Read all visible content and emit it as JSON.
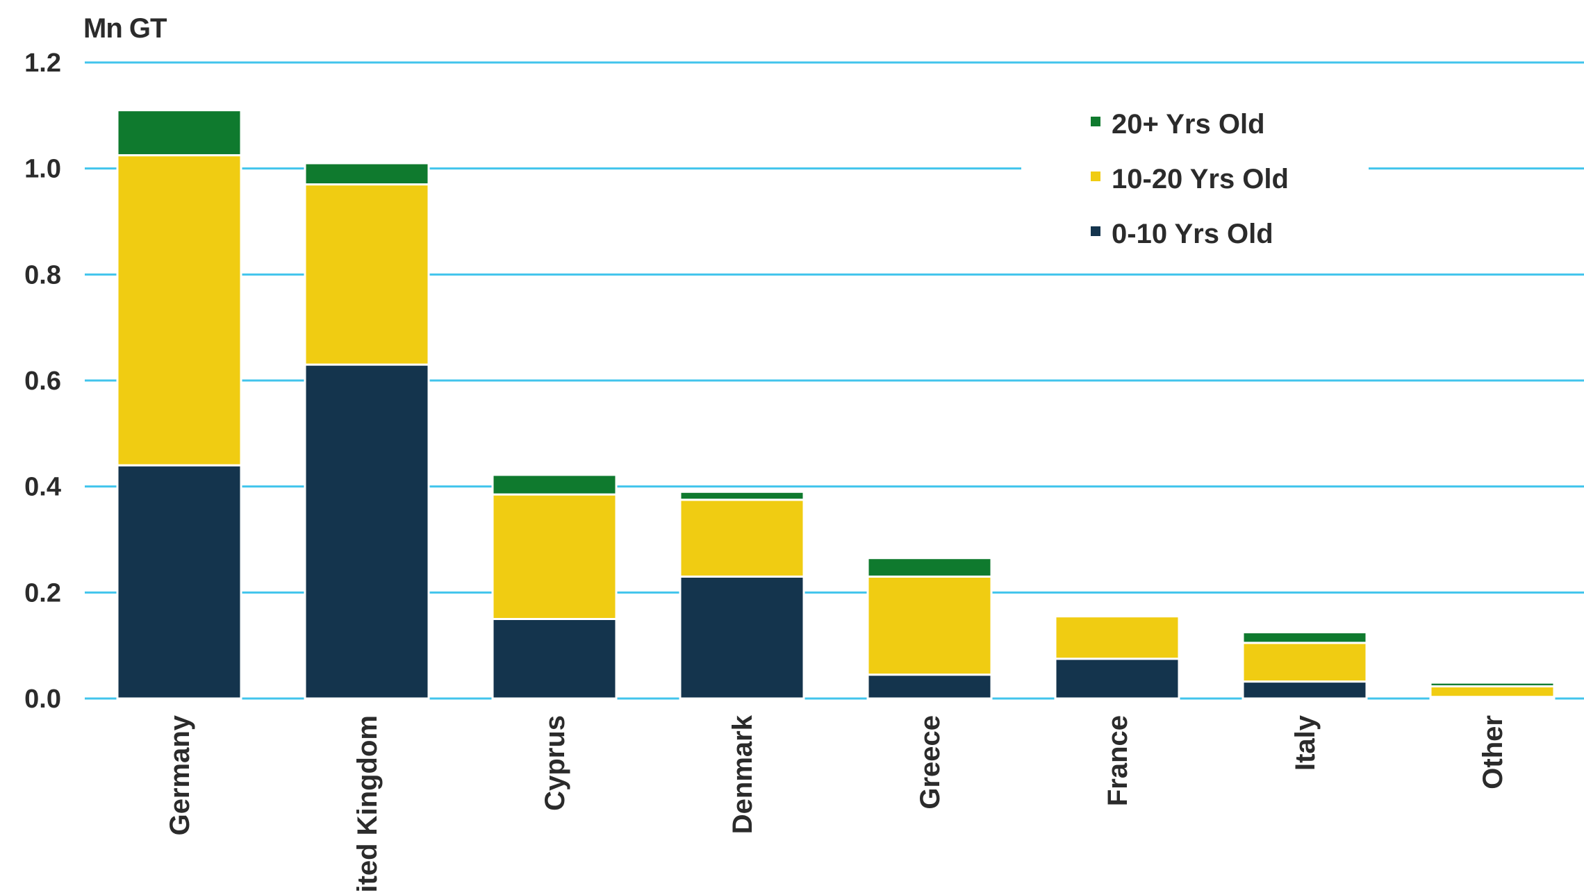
{
  "chart_data": {
    "type": "bar",
    "stacked": true,
    "ylabel": "Mn GT",
    "ylim": [
      0,
      1.2
    ],
    "yticks": [
      "0.0",
      "0.2",
      "0.4",
      "0.6",
      "0.8",
      "1.0",
      "1.2"
    ],
    "grid": true,
    "legend_position": "top-right",
    "categories": [
      "Germany",
      "United Kingdom",
      "Cyprus",
      "Denmark",
      "Greece",
      "France",
      "Italy",
      "Other"
    ],
    "series": [
      {
        "name": "0-10 Yrs Old",
        "color": "#14344d",
        "values": [
          0.44,
          0.63,
          0.15,
          0.23,
          0.045,
          0.075,
          0.032,
          0.003
        ]
      },
      {
        "name": "10-20 Yrs Old",
        "color": "#f0cc12",
        "values": [
          0.585,
          0.34,
          0.235,
          0.145,
          0.185,
          0.08,
          0.073,
          0.02
        ]
      },
      {
        "name": "20+ Yrs Old",
        "color": "#0f7a2e",
        "values": [
          0.085,
          0.04,
          0.037,
          0.015,
          0.035,
          0.0,
          0.02,
          0.007
        ]
      }
    ],
    "legend_order": [
      "20+ Yrs Old",
      "10-20 Yrs Old",
      "0-10 Yrs Old"
    ]
  }
}
